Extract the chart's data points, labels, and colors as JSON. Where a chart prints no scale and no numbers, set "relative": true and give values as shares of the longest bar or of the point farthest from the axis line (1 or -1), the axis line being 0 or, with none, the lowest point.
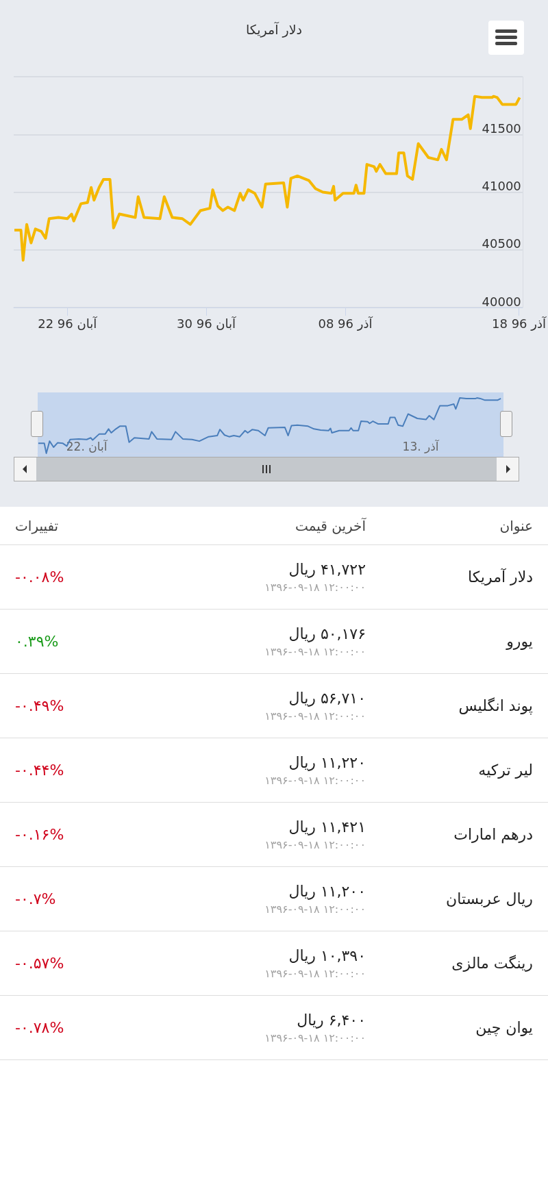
{
  "chart_data": [
    {
      "type": "line",
      "title": "دلار آمریکا",
      "color": "#f5b800",
      "grid": "y",
      "marker": "none",
      "x": [
        "--11-09T23:00",
        "--11-10T08:00",
        "--11-10T11:00",
        "--11-10T16:00",
        "--11-10T22:00",
        "--11-11T04:00",
        "--11-11T12:00",
        "--11-11T18:00",
        "--11-11T23:00",
        "--11-12T12:00",
        "--11-13T00:00",
        "--11-13T06:00",
        "--11-13T09:00",
        "--11-13T19:00",
        "--11-14T04:00",
        "--11-14T09:00",
        "--11-14T13:00",
        "--11-14T20:00",
        "--11-15T02:00",
        "--11-15T11:00",
        "--11-15T16:00",
        "--11-16T00:00",
        "--11-16T22:00",
        "--11-17T02:00",
        "--11-17T10:00",
        "--11-18T08:00",
        "--11-18T14:00",
        "--11-19T01:00",
        "--11-19T15:00",
        "--11-20T02:00",
        "--11-20T16:00",
        "--11-21T05:00",
        "--11-21T09:00",
        "--11-21T16:00",
        "--11-21T23:00",
        "--11-22T06:00",
        "--11-22T15:00",
        "--11-22T23:00",
        "--11-23T03:00",
        "--11-23T10:00",
        "--11-23T19:00",
        "--11-24T05:00",
        "--11-24T10:00",
        "--11-25T11:00",
        "--11-25T16:00",
        "--11-25T21:00",
        "--11-26T06:00",
        "--11-26T22:00",
        "--11-27T07:00",
        "--11-27T17:00",
        "--11-28T05:00",
        "--11-28T08:00",
        "--11-28T10:00",
        "--11-28T21:00",
        "--11-29T12:00",
        "--11-29T15:00",
        "--11-29T18:00",
        "--11-30T02:00",
        "--11-30T06:00",
        "--11-30T16:00",
        "--11-30T19:00",
        "--12-01T00:00",
        "--12-01T08:00",
        "--12-01T23:00",
        "--12-02T02:00",
        "--12-02T09:00",
        "--12-02T14:00",
        "--12-02T21:00",
        "--12-03T05:00",
        "--12-03T19:00",
        "--12-04T08:00",
        "--12-04T13:00",
        "--12-04T20:00",
        "--12-05T05:00",
        "--12-05T17:00",
        "--12-06T02:00",
        "--12-06T05:00",
        "--12-06T11:00",
        "--12-06T21:00",
        "--12-07T11:00",
        "--12-07T13:00",
        "--12-07T18:00",
        "--12-08T01:00",
        "--12-08T20:00",
        "--12-09T01:00"
      ],
      "values": [
        40670,
        40670,
        40410,
        40720,
        40560,
        40680,
        40660,
        40600,
        40770,
        40780,
        40770,
        40810,
        40750,
        40900,
        40910,
        41040,
        40930,
        41040,
        41110,
        41110,
        40690,
        40810,
        40780,
        40960,
        40780,
        40770,
        40960,
        40780,
        40770,
        40720,
        40840,
        40860,
        41020,
        40880,
        40840,
        40870,
        40840,
        40990,
        40930,
        41020,
        40990,
        40870,
        41070,
        41080,
        40870,
        41120,
        41140,
        41100,
        41030,
        41000,
        40990,
        41050,
        40930,
        40990,
        40990,
        41060,
        40990,
        40990,
        41240,
        41220,
        41180,
        41240,
        41160,
        41160,
        41340,
        41340,
        41140,
        41110,
        41420,
        41300,
        41280,
        41370,
        41280,
        41630,
        41630,
        41670,
        41550,
        41830,
        41820,
        41820,
        41830,
        41820,
        41760,
        41760,
        41820
      ],
      "xlim": [
        "--11-09T22:00",
        "--12-09T05:00"
      ],
      "xticks": [
        {
          "value": "--11-13",
          "label": "22 96 آبان"
        },
        {
          "value": "--11-21",
          "label": "30 96 آبان"
        },
        {
          "value": "--11-29",
          "label": "08 96 آذر"
        },
        {
          "value": "--12-09",
          "label": "18 96 آذر"
        }
      ],
      "ylim": [
        40000,
        42000
      ],
      "yticks": [
        40000,
        40500,
        41000,
        41500,
        {
          "value": 42000,
          "label": null
        }
      ]
    },
    {
      "type": "line",
      "color": "#4a7ebb",
      "relative": true,
      "marker": "none",
      "tick_labels": "x",
      "x": [
        "--11-09T23:00",
        "--11-10T08:00",
        "--11-10T11:00",
        "--11-10T16:00",
        "--11-10T22:00",
        "--11-11T04:00",
        "--11-11T12:00",
        "--11-11T18:00",
        "--11-11T23:00",
        "--11-12T12:00",
        "--11-13T00:00",
        "--11-13T06:00",
        "--11-13T09:00",
        "--11-13T19:00",
        "--11-14T04:00",
        "--11-14T09:00",
        "--11-14T13:00",
        "--11-14T20:00",
        "--11-15T02:00",
        "--11-15T11:00",
        "--11-15T16:00",
        "--11-16T00:00",
        "--11-16T22:00",
        "--11-17T02:00",
        "--11-17T10:00",
        "--11-18T08:00",
        "--11-18T14:00",
        "--11-19T01:00",
        "--11-19T15:00",
        "--11-20T02:00",
        "--11-20T16:00",
        "--11-21T05:00",
        "--11-21T09:00",
        "--11-21T16:00",
        "--11-21T23:00",
        "--11-22T06:00",
        "--11-22T15:00",
        "--11-22T23:00",
        "--11-23T03:00",
        "--11-23T10:00",
        "--11-23T19:00",
        "--11-24T05:00",
        "--11-24T10:00",
        "--11-25T11:00",
        "--11-25T16:00",
        "--11-25T21:00",
        "--11-26T06:00",
        "--11-26T22:00",
        "--11-27T07:00",
        "--11-27T17:00",
        "--11-28T05:00",
        "--11-28T08:00",
        "--11-28T10:00",
        "--11-28T21:00",
        "--11-29T12:00",
        "--11-29T15:00",
        "--11-29T18:00",
        "--11-30T02:00",
        "--11-30T06:00",
        "--11-30T16:00",
        "--11-30T19:00",
        "--12-01T00:00",
        "--12-01T08:00",
        "--12-01T23:00",
        "--12-02T02:00",
        "--12-02T09:00",
        "--12-02T14:00",
        "--12-02T21:00",
        "--12-03T05:00",
        "--12-03T19:00",
        "--12-04T08:00",
        "--12-04T13:00",
        "--12-04T20:00",
        "--12-05T05:00",
        "--12-05T17:00",
        "--12-06T02:00",
        "--12-06T05:00",
        "--12-06T11:00",
        "--12-06T21:00",
        "--12-07T11:00",
        "--12-07T13:00",
        "--12-07T18:00",
        "--12-08T01:00",
        "--12-08T20:00",
        "--12-09T01:00"
      ],
      "values": [
        0.18,
        0.18,
        0,
        0.22,
        0.11,
        0.19,
        0.18,
        0.13,
        0.25,
        0.26,
        0.25,
        0.28,
        0.24,
        0.35,
        0.35,
        0.44,
        0.37,
        0.44,
        0.49,
        0.49,
        0.2,
        0.28,
        0.26,
        0.39,
        0.26,
        0.25,
        0.39,
        0.26,
        0.25,
        0.22,
        0.3,
        0.32,
        0.43,
        0.33,
        0.3,
        0.32,
        0.3,
        0.41,
        0.37,
        0.43,
        0.41,
        0.32,
        0.46,
        0.47,
        0.32,
        0.5,
        0.51,
        0.49,
        0.44,
        0.42,
        0.41,
        0.45,
        0.37,
        0.41,
        0.41,
        0.46,
        0.41,
        0.41,
        0.58,
        0.57,
        0.54,
        0.58,
        0.53,
        0.53,
        0.65,
        0.65,
        0.51,
        0.49,
        0.71,
        0.63,
        0.61,
        0.68,
        0.61,
        0.86,
        0.86,
        0.89,
        0.8,
        1,
        0.99,
        0.99,
        1,
        0.99,
        0.96,
        0.96,
        0.99
      ],
      "xlim": [
        "--11-09T22:00",
        "--12-09T05:00"
      ],
      "xticks": [
        {
          "value": "--11-13",
          "label": "22. آبان"
        },
        {
          "value": "--12-04",
          "label": "13. آذر"
        }
      ]
    },
    {
      "type": "other",
      "ylabel": "عنوان",
      "categories": [
        "دلار آمریکا",
        "یورو",
        "پوند انگلیس",
        "لیر ترکیه",
        "درهم امارات",
        "ریال عربستان",
        "رینگت مالزی",
        "یوان چین"
      ],
      "annotations": [
        "۱۳۹۶-۰۹-۱۸ ۱۲:۰۰:۰۰",
        "۱۳۹۶-۰۹-۱۸ ۱۲:۰۰:۰۰",
        "۱۳۹۶-۰۹-۱۸ ۱۲:۰۰:۰۰",
        "۱۳۹۶-۰۹-۱۸ ۱۲:۰۰:۰۰",
        "۱۳۹۶-۰۹-۱۸ ۱۲:۰۰:۰۰",
        "۱۳۹۶-۰۹-۱۸ ۱۲:۰۰:۰۰",
        "۱۳۹۶-۰۹-۱۸ ۱۲:۰۰:۰۰",
        "۱۳۹۶-۰۹-۱۸ ۱۲:۰۰:۰۰"
      ],
      "series": [
        {
          "name": "آخرین قیمت",
          "color": "#222222",
          "values": [
            41722,
            50176,
            56710,
            11220,
            11421,
            11200,
            10390,
            6400
          ],
          "value_labels": [
            "۴۱,۷۲۲ ریال",
            "۵۰,۱۷۶ ریال",
            "۵۶,۷۱۰ ریال",
            "۱۱,۲۲۰ ریال",
            "۱۱,۴۲۱ ریال",
            "۱۱,۲۰۰ ریال",
            "۱۰,۳۹۰ ریال",
            "۶,۴۰۰ ریال"
          ]
        },
        {
          "name": "تفییرات",
          "colors": [
            "#d0021b",
            "#1a9b1a",
            "#d0021b",
            "#d0021b",
            "#d0021b",
            "#d0021b",
            "#d0021b",
            "#d0021b"
          ],
          "values": [
            -0.08,
            0.39,
            -0.49,
            -0.44,
            -0.16,
            -0.7,
            -0.57,
            -0.78
          ],
          "value_labels": [
            "-۰.۰۸%",
            "۰.۳۹%",
            "-۰.۴۹%",
            "-۰.۴۴%",
            "-۰.۱۶%",
            "-۰.۷%",
            "-۰.۵۷%",
            "-۰.۷۸%"
          ]
        }
      ]
    }
  ]
}
